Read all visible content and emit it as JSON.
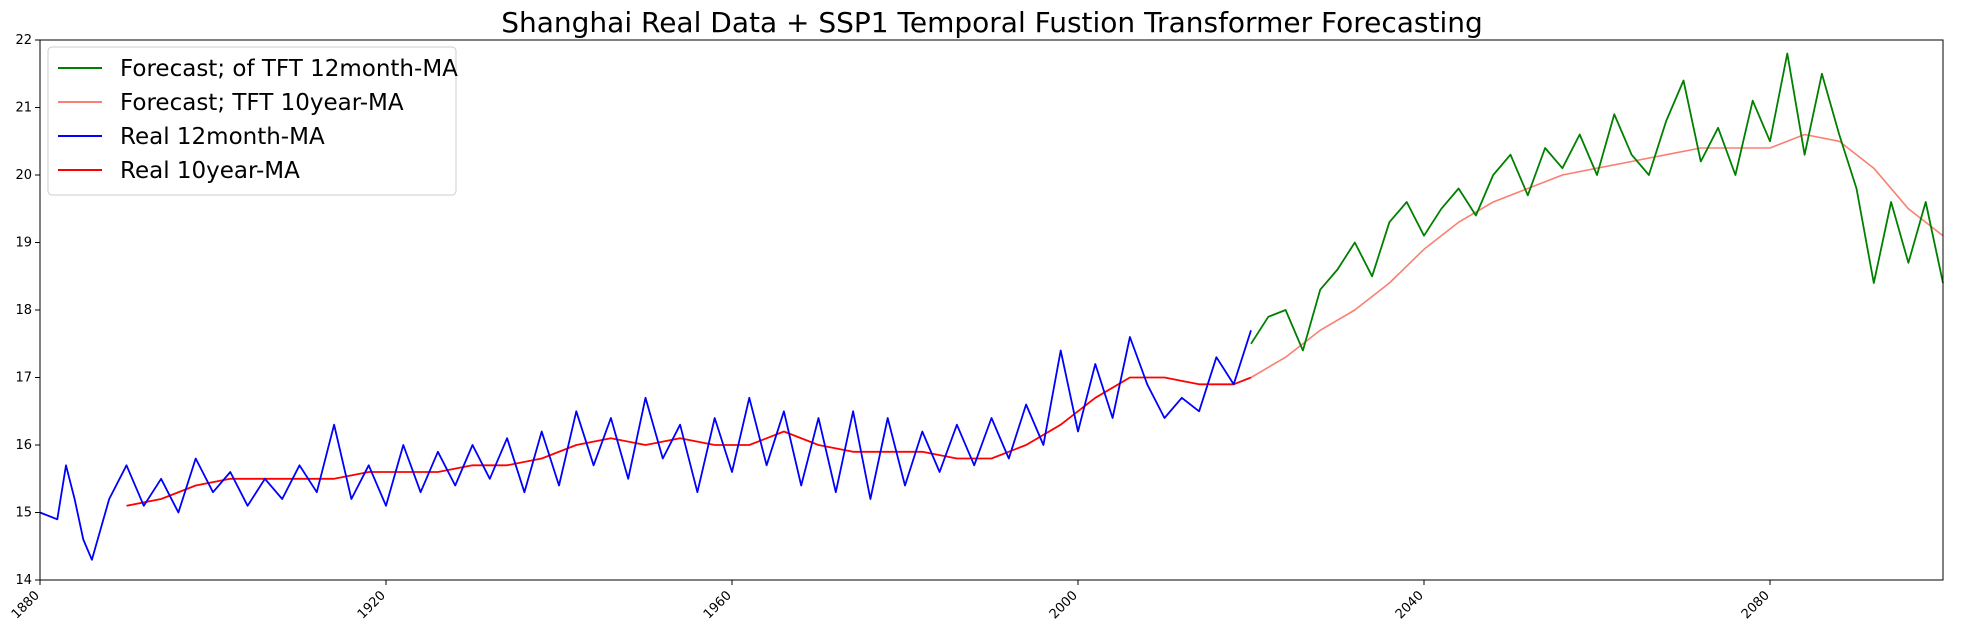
{
  "chart_data": {
    "type": "line",
    "title": "Shanghai Real Data + SSP1 Temporal Fustion Transformer Forecasting",
    "xlabel": "",
    "ylabel": "",
    "xlim": [
      1880,
      2100
    ],
    "ylim": [
      14,
      22
    ],
    "x_ticks": [
      "1880",
      "1920",
      "1960",
      "2000",
      "2040",
      "2080"
    ],
    "y_ticks": [
      "14",
      "15",
      "16",
      "17",
      "18",
      "19",
      "20",
      "21",
      "22"
    ],
    "grid": false,
    "legend_position": "upper-left",
    "series": [
      {
        "name": "Forecast; of TFT 12month-MA",
        "color": "#008000",
        "points": [
          [
            2020,
            17.5
          ],
          [
            2022,
            17.9
          ],
          [
            2024,
            18.0
          ],
          [
            2026,
            17.4
          ],
          [
            2028,
            18.3
          ],
          [
            2030,
            18.6
          ],
          [
            2032,
            19.0
          ],
          [
            2034,
            18.5
          ],
          [
            2036,
            19.3
          ],
          [
            2038,
            19.6
          ],
          [
            2040,
            19.1
          ],
          [
            2042,
            19.5
          ],
          [
            2044,
            19.8
          ],
          [
            2046,
            19.4
          ],
          [
            2048,
            20.0
          ],
          [
            2050,
            20.3
          ],
          [
            2052,
            19.7
          ],
          [
            2054,
            20.4
          ],
          [
            2056,
            20.1
          ],
          [
            2058,
            20.6
          ],
          [
            2060,
            20.0
          ],
          [
            2062,
            20.9
          ],
          [
            2064,
            20.3
          ],
          [
            2066,
            20.0
          ],
          [
            2068,
            20.8
          ],
          [
            2070,
            21.4
          ],
          [
            2072,
            20.2
          ],
          [
            2074,
            20.7
          ],
          [
            2076,
            20.0
          ],
          [
            2078,
            21.1
          ],
          [
            2080,
            20.5
          ],
          [
            2082,
            21.8
          ],
          [
            2084,
            20.3
          ],
          [
            2086,
            21.5
          ],
          [
            2088,
            20.6
          ],
          [
            2090,
            19.8
          ],
          [
            2092,
            18.4
          ],
          [
            2094,
            19.6
          ],
          [
            2096,
            18.7
          ],
          [
            2098,
            19.6
          ],
          [
            2100,
            18.4
          ]
        ]
      },
      {
        "name": "Forecast; TFT 10year-MA",
        "color": "#fa8072",
        "points": [
          [
            2020,
            17.0
          ],
          [
            2024,
            17.3
          ],
          [
            2028,
            17.7
          ],
          [
            2032,
            18.0
          ],
          [
            2036,
            18.4
          ],
          [
            2040,
            18.9
          ],
          [
            2044,
            19.3
          ],
          [
            2048,
            19.6
          ],
          [
            2052,
            19.8
          ],
          [
            2056,
            20.0
          ],
          [
            2060,
            20.1
          ],
          [
            2064,
            20.2
          ],
          [
            2068,
            20.3
          ],
          [
            2072,
            20.4
          ],
          [
            2076,
            20.4
          ],
          [
            2080,
            20.4
          ],
          [
            2084,
            20.6
          ],
          [
            2088,
            20.5
          ],
          [
            2092,
            20.1
          ],
          [
            2096,
            19.5
          ],
          [
            2100,
            19.1
          ]
        ]
      },
      {
        "name": "Real 12month-MA",
        "color": "#0000ff",
        "points": [
          [
            1880,
            15.0
          ],
          [
            1882,
            14.9
          ],
          [
            1883,
            15.7
          ],
          [
            1884,
            15.2
          ],
          [
            1885,
            14.6
          ],
          [
            1886,
            14.3
          ],
          [
            1888,
            15.2
          ],
          [
            1890,
            15.7
          ],
          [
            1892,
            15.1
          ],
          [
            1894,
            15.5
          ],
          [
            1896,
            15.0
          ],
          [
            1898,
            15.8
          ],
          [
            1900,
            15.3
          ],
          [
            1902,
            15.6
          ],
          [
            1904,
            15.1
          ],
          [
            1906,
            15.5
          ],
          [
            1908,
            15.2
          ],
          [
            1910,
            15.7
          ],
          [
            1912,
            15.3
          ],
          [
            1914,
            16.3
          ],
          [
            1916,
            15.2
          ],
          [
            1918,
            15.7
          ],
          [
            1920,
            15.1
          ],
          [
            1922,
            16.0
          ],
          [
            1924,
            15.3
          ],
          [
            1926,
            15.9
          ],
          [
            1928,
            15.4
          ],
          [
            1930,
            16.0
          ],
          [
            1932,
            15.5
          ],
          [
            1934,
            16.1
          ],
          [
            1936,
            15.3
          ],
          [
            1938,
            16.2
          ],
          [
            1940,
            15.4
          ],
          [
            1942,
            16.5
          ],
          [
            1944,
            15.7
          ],
          [
            1946,
            16.4
          ],
          [
            1948,
            15.5
          ],
          [
            1950,
            16.7
          ],
          [
            1952,
            15.8
          ],
          [
            1954,
            16.3
          ],
          [
            1956,
            15.3
          ],
          [
            1958,
            16.4
          ],
          [
            1960,
            15.6
          ],
          [
            1962,
            16.7
          ],
          [
            1964,
            15.7
          ],
          [
            1966,
            16.5
          ],
          [
            1968,
            15.4
          ],
          [
            1970,
            16.4
          ],
          [
            1972,
            15.3
          ],
          [
            1974,
            16.5
          ],
          [
            1976,
            15.2
          ],
          [
            1978,
            16.4
          ],
          [
            1980,
            15.4
          ],
          [
            1982,
            16.2
          ],
          [
            1984,
            15.6
          ],
          [
            1986,
            16.3
          ],
          [
            1988,
            15.7
          ],
          [
            1990,
            16.4
          ],
          [
            1992,
            15.8
          ],
          [
            1994,
            16.6
          ],
          [
            1996,
            16.0
          ],
          [
            1998,
            17.4
          ],
          [
            2000,
            16.2
          ],
          [
            2002,
            17.2
          ],
          [
            2004,
            16.4
          ],
          [
            2006,
            17.6
          ],
          [
            2008,
            16.9
          ],
          [
            2010,
            16.4
          ],
          [
            2012,
            16.7
          ],
          [
            2014,
            16.5
          ],
          [
            2016,
            17.3
          ],
          [
            2018,
            16.9
          ],
          [
            2020,
            17.7
          ]
        ]
      },
      {
        "name": "Real 10year-MA",
        "color": "#ff0000",
        "points": [
          [
            1890,
            15.1
          ],
          [
            1894,
            15.2
          ],
          [
            1898,
            15.4
          ],
          [
            1902,
            15.5
          ],
          [
            1906,
            15.5
          ],
          [
            1910,
            15.5
          ],
          [
            1914,
            15.5
          ],
          [
            1918,
            15.6
          ],
          [
            1922,
            15.6
          ],
          [
            1926,
            15.6
          ],
          [
            1930,
            15.7
          ],
          [
            1934,
            15.7
          ],
          [
            1938,
            15.8
          ],
          [
            1942,
            16.0
          ],
          [
            1946,
            16.1
          ],
          [
            1950,
            16.0
          ],
          [
            1954,
            16.1
          ],
          [
            1958,
            16.0
          ],
          [
            1962,
            16.0
          ],
          [
            1966,
            16.2
          ],
          [
            1970,
            16.0
          ],
          [
            1974,
            15.9
          ],
          [
            1978,
            15.9
          ],
          [
            1982,
            15.9
          ],
          [
            1986,
            15.8
          ],
          [
            1990,
            15.8
          ],
          [
            1994,
            16.0
          ],
          [
            1998,
            16.3
          ],
          [
            2002,
            16.7
          ],
          [
            2006,
            17.0
          ],
          [
            2010,
            17.0
          ],
          [
            2014,
            16.9
          ],
          [
            2018,
            16.9
          ],
          [
            2020,
            17.0
          ]
        ]
      }
    ]
  }
}
